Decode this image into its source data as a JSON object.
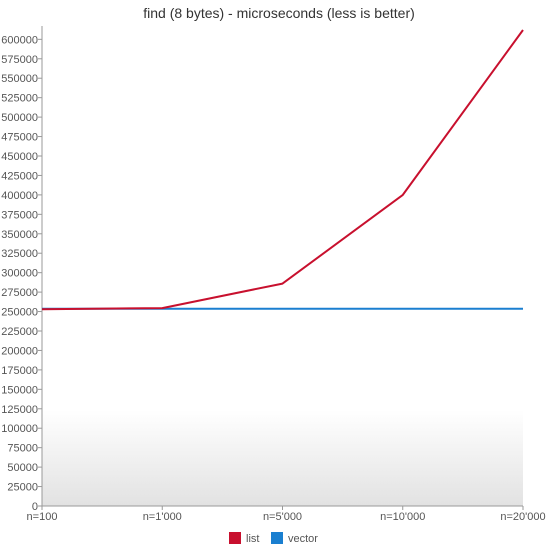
{
  "chart_data": {
    "type": "line",
    "title": "find (8 bytes) - microseconds (less is better)",
    "xlabel": "",
    "ylabel": "",
    "categories": [
      "n=100",
      "n=1'000",
      "n=5'000",
      "n=10'000",
      "n=20'000"
    ],
    "ylim": [
      0,
      612000
    ],
    "yticks": [
      0,
      25000,
      50000,
      75000,
      100000,
      125000,
      150000,
      175000,
      200000,
      225000,
      250000,
      275000,
      300000,
      325000,
      350000,
      375000,
      400000,
      425000,
      450000,
      475000,
      500000,
      525000,
      550000,
      575000,
      600000
    ],
    "legend_position": "bottom-center",
    "series": [
      {
        "name": "list",
        "color": "#c8102e",
        "values": [
          253000,
          254500,
          286000,
          400000,
          612000
        ]
      },
      {
        "name": "vector",
        "color": "#1a7fd0",
        "values": [
          253500,
          253500,
          253500,
          253500,
          253500
        ]
      }
    ]
  }
}
